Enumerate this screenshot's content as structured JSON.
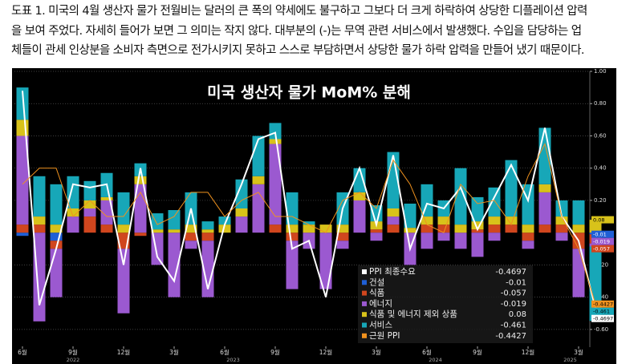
{
  "caption": [
    "도표 1. 미국의 4월 생산자 물가 전월비는 달러의 큰 폭의 약세에도 불구하고 그보다 더 크게 하락하여 상당한 디플레이션 압력",
    "을 보여 주었다. 자세히 들어가 보면 그 의미는 작지 않다. 대부분의 (-)는 무역 관련 서비스에서 발생했다. 수입을 담당하는 업",
    "체들이 관세 인상분을 소비자 측면으로 전가시키지 못하고 스스로 부담하면서 상당한 물가 하락 압력을 만들어 냈기 때문이다."
  ],
  "chart_data": {
    "type": "bar",
    "title": "미국 생산자 물가 MoM% 분해",
    "categories": [
      "6월",
      null,
      null,
      "9월",
      null,
      null,
      "12월",
      null,
      null,
      "3월",
      null,
      null,
      "6월",
      null,
      null,
      "9월",
      null,
      null,
      "12월",
      null,
      null,
      "3월",
      null,
      null,
      "6월",
      null,
      null,
      "9월",
      null,
      null,
      "12월",
      null,
      null,
      "3월",
      null
    ],
    "year_labels": [
      "2022",
      "2023",
      "2024",
      "2025"
    ],
    "ylim": [
      -0.7,
      1.0
    ],
    "yticks": [
      {
        "value": 1.0,
        "label": "1.00"
      },
      {
        "value": 0.8,
        "label": "0.80"
      },
      {
        "value": 0.6,
        "label": "0.60"
      },
      {
        "value": 0.4,
        "label": "0.40"
      },
      {
        "value": 0.2,
        "label": "0.20"
      },
      {
        "value": -0.2,
        "label": "-0.20"
      },
      {
        "value": -0.4,
        "label": "-0.40"
      },
      {
        "value": -0.6,
        "label": "-0.60"
      }
    ],
    "grid": true,
    "series": [
      {
        "name": "PPI 최종수요",
        "mark": "line",
        "color": "#ffffff",
        "values": [
          0.88,
          -0.45,
          -0.1,
          0.3,
          0.28,
          0.3,
          -0.2,
          0.4,
          -0.15,
          -0.3,
          0.15,
          -0.35,
          0.05,
          0.3,
          0.58,
          0.62,
          -0.1,
          -0.05,
          -0.4,
          0.15,
          0.4,
          0.05,
          0.48,
          -0.1,
          0.18,
          0.15,
          0.28,
          0.02,
          0.22,
          0.42,
          0.2,
          0.65,
          0.1,
          -0.05,
          -0.4697
        ]
      },
      {
        "name": "건설",
        "mark": "bar",
        "color": "#1f5fd6",
        "values": [
          -0.02,
          0,
          -0.05,
          0,
          0,
          0,
          0,
          0,
          0,
          0,
          0,
          0,
          0,
          0,
          0,
          0,
          0,
          0,
          0,
          0,
          0,
          0,
          0,
          0,
          0,
          0,
          0,
          0,
          0,
          0,
          0,
          0,
          0,
          0,
          -0.01
        ]
      },
      {
        "name": "식품",
        "mark": "bar",
        "color": "#d0461e",
        "values": [
          0.05,
          0.05,
          -0.05,
          0,
          0.1,
          0.05,
          -0.1,
          -0.02,
          0,
          0,
          -0.05,
          -0.05,
          0,
          0,
          0,
          0.05,
          -0.05,
          0,
          0,
          -0.05,
          0,
          0.02,
          0.05,
          0,
          0.05,
          0.05,
          0,
          0.02,
          0.05,
          0.05,
          -0.05,
          0.05,
          0.05,
          -0.1,
          -0.057
        ]
      },
      {
        "name": "에너지",
        "mark": "bar",
        "color": "#9b59d0",
        "values": [
          0.55,
          -0.55,
          -0.3,
          0.1,
          0.05,
          0.15,
          -0.4,
          0.3,
          -0.2,
          -0.4,
          -0.05,
          -0.35,
          0,
          0.1,
          0.3,
          0.5,
          -0.3,
          -0.1,
          -0.35,
          -0.05,
          0.2,
          -0.05,
          0.05,
          -0.2,
          -0.1,
          -0.05,
          -0.1,
          -0.15,
          -0.05,
          0,
          -0.05,
          0.2,
          -0.05,
          -0.3,
          -0.019
        ]
      },
      {
        "name": "식품 및 에너지 제외 상품",
        "mark": "bar",
        "color": "#d8c21a",
        "values": [
          0.1,
          0.05,
          0.05,
          0.05,
          0.05,
          0.02,
          0.05,
          0.05,
          0.02,
          0.02,
          0.05,
          0.02,
          0.05,
          0.05,
          0.05,
          0.03,
          0.05,
          0.05,
          0.05,
          0.05,
          0.05,
          0.05,
          0.05,
          0.03,
          0.05,
          0.05,
          0.05,
          0.05,
          0.05,
          0.05,
          0.05,
          0.05,
          0.05,
          0.05,
          0.08
        ]
      },
      {
        "name": "서비스",
        "mark": "bar",
        "color": "#17a7b8",
        "values": [
          0.2,
          0.25,
          0.25,
          0.2,
          0.12,
          0.15,
          0.2,
          0.08,
          0.1,
          0.12,
          0.2,
          0.05,
          0.05,
          0.18,
          0.25,
          0.1,
          0.2,
          0.02,
          0,
          0.2,
          0.15,
          0.1,
          0.35,
          0.15,
          0.2,
          0.1,
          0.35,
          0.15,
          0.18,
          0.35,
          0.25,
          0.35,
          0.1,
          0.15,
          -0.461
        ]
      },
      {
        "name": "근원 PPI",
        "mark": "line",
        "color": "#f0921e",
        "values": [
          0.3,
          0.4,
          0.4,
          0.1,
          0.2,
          0.1,
          0.1,
          0.25,
          0.05,
          0.1,
          0.25,
          0.25,
          0.1,
          0.2,
          0.25,
          0.1,
          0.1,
          0.05,
          0,
          0.2,
          0.25,
          0.15,
          0.45,
          0.3,
          0.05,
          0,
          0.3,
          0.18,
          0.2,
          0.05,
          0.35,
          0.55,
          0.1,
          -0.1,
          -0.4427
        ]
      }
    ]
  }
}
